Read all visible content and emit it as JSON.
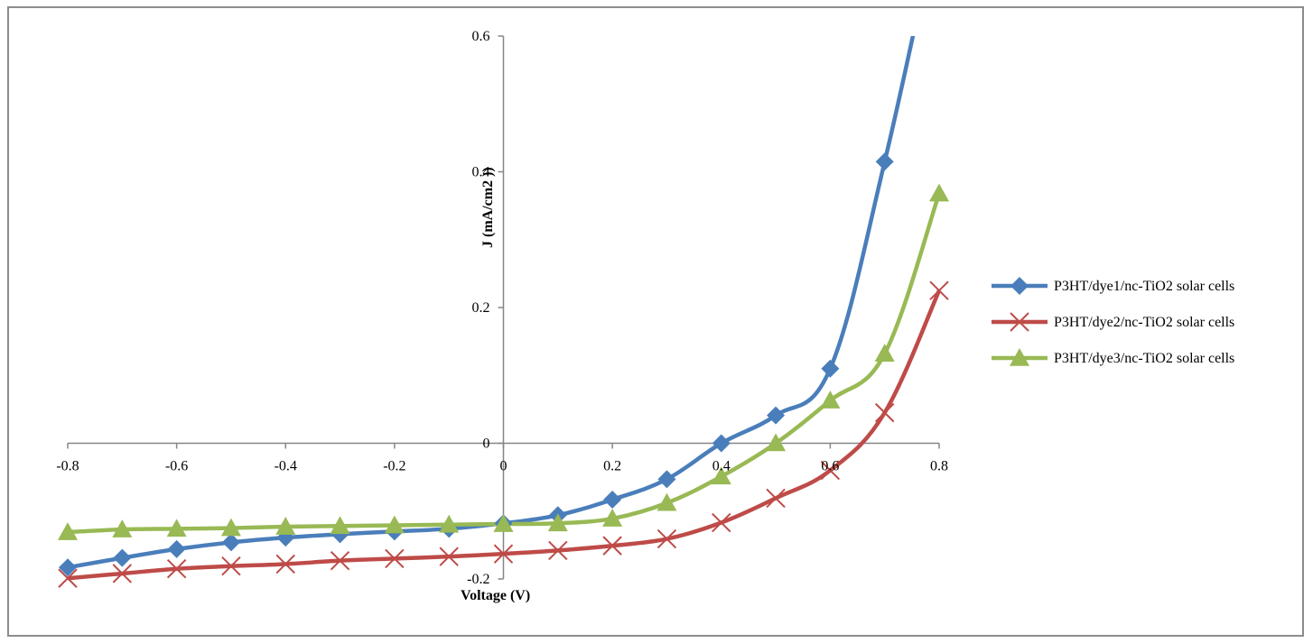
{
  "chart_data": {
    "type": "line",
    "title": "",
    "xlabel": "Voltage (V)",
    "ylabel": "J (mA/cm2 ))",
    "xlim": [
      -0.8,
      0.8
    ],
    "ylim": [
      -0.2,
      0.6
    ],
    "x_ticks": [
      -0.8,
      -0.6,
      -0.4,
      -0.2,
      0,
      0.2,
      0.4,
      0.6,
      0.8
    ],
    "y_ticks": [
      -0.2,
      0,
      0.2,
      0.4,
      0.6
    ],
    "x_tick_labels": [
      "-0.8",
      "-0.6",
      "-0.4",
      "-0.2",
      "0",
      "0.2",
      "0.4",
      "0.6",
      "0.8"
    ],
    "y_tick_labels": [
      "-0.2",
      "0",
      "0.2",
      "0.4",
      "0.6"
    ],
    "grid": false,
    "legend_position": "right",
    "x": [
      -0.8,
      -0.7,
      -0.6,
      -0.5,
      -0.4,
      -0.3,
      -0.2,
      -0.1,
      0,
      0.1,
      0.2,
      0.3,
      0.4,
      0.5,
      0.6,
      0.7,
      0.8
    ],
    "series": [
      {
        "name": "P3HT/dye1/nc-TiO2 solar cells",
        "color": "#4a7ebb",
        "marker": "diamond",
        "x": [
          -0.8,
          -0.7,
          -0.6,
          -0.5,
          -0.4,
          -0.3,
          -0.2,
          -0.1,
          0,
          0.1,
          0.2,
          0.3,
          0.4,
          0.5,
          0.6,
          0.7
        ],
        "values": [
          -0.183,
          -0.169,
          -0.156,
          -0.146,
          -0.139,
          -0.134,
          -0.13,
          -0.126,
          -0.118,
          -0.106,
          -0.083,
          -0.053,
          0.0,
          0.041,
          0.11,
          0.415
        ]
      },
      {
        "name": "P3HT/dye2/nc-TiO2 solar cells",
        "color": "#be4b48",
        "marker": "x",
        "x": [
          -0.8,
          -0.7,
          -0.6,
          -0.5,
          -0.4,
          -0.3,
          -0.2,
          -0.1,
          0,
          0.1,
          0.2,
          0.3,
          0.4,
          0.5,
          0.6,
          0.7,
          0.8
        ],
        "values": [
          -0.199,
          -0.192,
          -0.185,
          -0.181,
          -0.178,
          -0.173,
          -0.17,
          -0.167,
          -0.163,
          -0.158,
          -0.151,
          -0.141,
          -0.117,
          -0.081,
          -0.04,
          0.045,
          0.225
        ]
      },
      {
        "name": "P3HT/dye3/nc-TiO2 solar cells",
        "color": "#98b954",
        "marker": "triangle",
        "x": [
          -0.8,
          -0.7,
          -0.6,
          -0.5,
          -0.4,
          -0.3,
          -0.2,
          -0.1,
          0,
          0.1,
          0.2,
          0.3,
          0.4,
          0.5,
          0.6,
          0.7,
          0.8
        ],
        "values": [
          -0.131,
          -0.127,
          -0.126,
          -0.125,
          -0.123,
          -0.122,
          -0.121,
          -0.12,
          -0.119,
          -0.118,
          -0.111,
          -0.088,
          -0.049,
          0.0,
          0.063,
          0.132,
          0.368
        ]
      }
    ]
  }
}
